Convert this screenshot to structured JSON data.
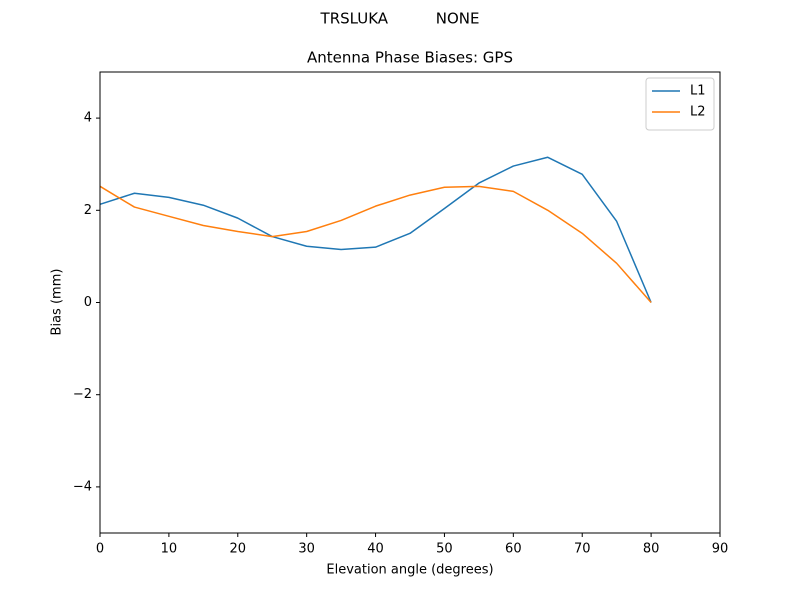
{
  "chart_data": {
    "type": "line",
    "suptitle": "TRSLUKA          NONE",
    "title": "Antenna Phase Biases: GPS",
    "xlabel": "Elevation angle (degrees)",
    "ylabel": "Bias (mm)",
    "x": [
      0,
      5,
      10,
      15,
      20,
      25,
      30,
      35,
      40,
      45,
      50,
      55,
      60,
      65,
      70,
      75,
      80
    ],
    "series": [
      {
        "name": "L1",
        "color": "#1f77b4",
        "values": [
          2.13,
          2.37,
          2.28,
          2.11,
          1.83,
          1.43,
          1.22,
          1.15,
          1.2,
          1.5,
          2.04,
          2.59,
          2.96,
          3.15,
          2.78,
          1.76,
          0.0
        ]
      },
      {
        "name": "L2",
        "color": "#ff7f0e",
        "values": [
          2.52,
          2.07,
          1.87,
          1.67,
          1.54,
          1.43,
          1.54,
          1.78,
          2.09,
          2.33,
          2.5,
          2.52,
          2.41,
          2.0,
          1.5,
          0.85,
          0.0
        ]
      }
    ],
    "xlim": [
      0,
      90
    ],
    "xticks": [
      0,
      10,
      20,
      30,
      40,
      50,
      60,
      70,
      80,
      90
    ],
    "ylim": [
      -5,
      5
    ],
    "yticks": [
      {
        "value": -4,
        "label": "−4"
      },
      {
        "value": -2,
        "label": "−2"
      },
      0,
      2,
      4
    ],
    "legend": "upper right",
    "grid": false
  }
}
